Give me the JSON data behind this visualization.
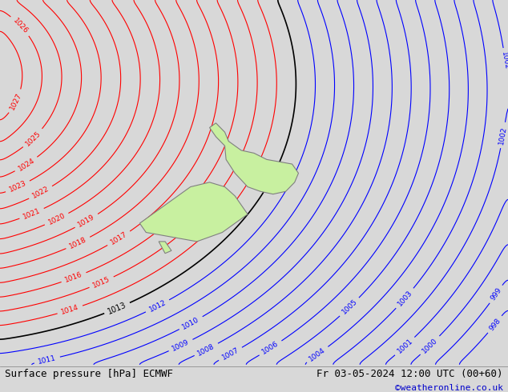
{
  "title_left": "Surface pressure [hPa] ECMWF",
  "title_right": "Fr 03-05-2024 12:00 UTC (00+60)",
  "watermark": "©weatheronline.co.uk",
  "background_color": "#d8d8d8",
  "land_color": "#c8f0a0",
  "coastline_color": "#808080",
  "red_contour_color": "#ff0000",
  "blue_contour_color": "#0000ff",
  "black_contour_color": "#000000",
  "text_color": "#000000",
  "figsize": [
    6.34,
    4.9
  ],
  "dpi": 100,
  "pressure_red_min": 1014,
  "pressure_red_max": 1027,
  "pressure_blue_min": 998,
  "pressure_blue_max": 1012,
  "pressure_black": 1013,
  "font_size_bottom": 9,
  "font_size_watermark": 8
}
